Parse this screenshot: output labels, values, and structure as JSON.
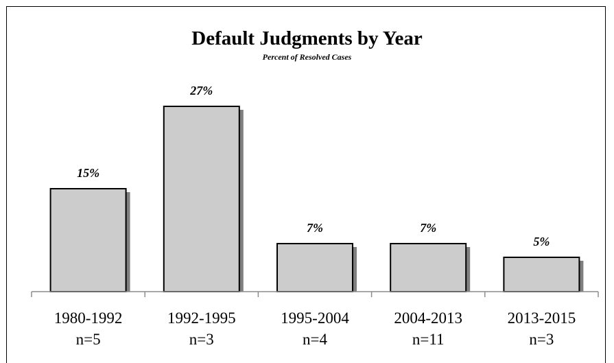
{
  "chart_data": {
    "type": "bar",
    "title": "Default Judgments by Year",
    "subtitle": "Percent of Resolved Cases",
    "categories": [
      "1980-1992",
      "1992-1995",
      "1995-2004",
      "2004-2013",
      "2013-2015"
    ],
    "sample_sizes": [
      "n=5",
      "n=3",
      "n=4",
      "n=11",
      "n=3"
    ],
    "values": [
      15,
      27,
      7,
      7,
      5
    ],
    "value_labels": [
      "15%",
      "27%",
      "7%",
      "7%",
      "5%"
    ],
    "ylim": [
      0,
      30
    ],
    "grid": false,
    "legend": "none",
    "colors": {
      "bar_fill": "#cccccc",
      "bar_stroke": "#000000",
      "shadow": "#7f7f7f"
    }
  }
}
